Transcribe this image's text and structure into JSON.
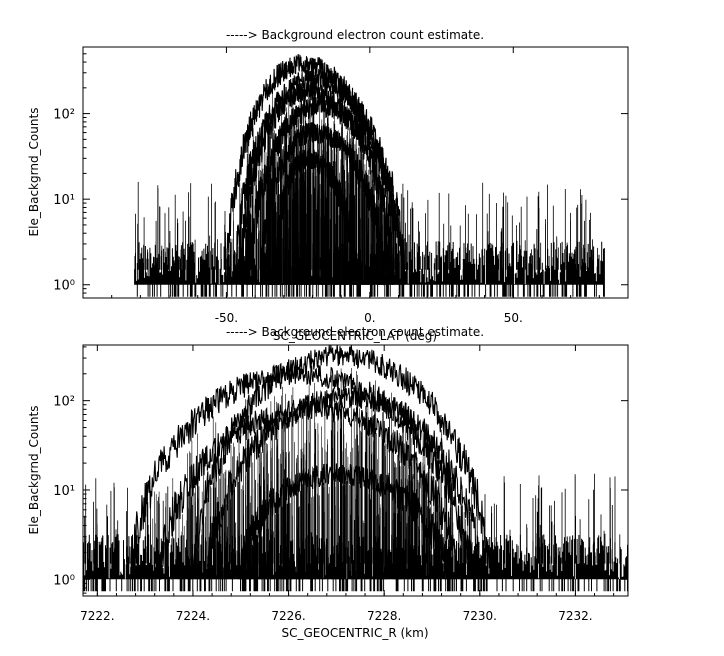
{
  "chart_data": [
    {
      "type": "line",
      "title": "-----> Background electron count estimate.",
      "xlabel": "SC_GEOCENTRIC_LAT (deg)",
      "ylabel": "Ele_Backgrnd_Counts",
      "xlim": [
        -100,
        90
      ],
      "ylim": [
        0.7,
        600
      ],
      "yscale": "log",
      "x_ticks": [
        -50,
        0,
        50
      ],
      "x_tick_labels": [
        "-50.",
        "0.",
        "50."
      ],
      "y_ticks": [
        1,
        10,
        100
      ],
      "y_tick_labels": [
        "10⁰",
        "10¹",
        "10²"
      ],
      "data_range_x": [
        -82,
        82
      ],
      "noise_floor_counts": [
        1,
        3
      ],
      "series": [
        {
          "peak_x": -24,
          "peak_y": 380,
          "x_span": [
            -50,
            10
          ]
        },
        {
          "peak_x": -20,
          "peak_y": 250,
          "x_span": [
            -47,
            12
          ]
        },
        {
          "peak_x": -22,
          "peak_y": 180,
          "x_span": [
            -45,
            8
          ]
        },
        {
          "peak_x": -18,
          "peak_y": 120,
          "x_span": [
            -42,
            12
          ]
        },
        {
          "peak_x": -20,
          "peak_y": 60,
          "x_span": [
            -38,
            5
          ]
        },
        {
          "peak_x": -22,
          "peak_y": 30,
          "x_span": [
            -33,
            -5
          ]
        }
      ]
    },
    {
      "type": "line",
      "title": "-----> Background electron count estimate.",
      "xlabel": "SC_GEOCENTRIC_R (km)",
      "ylabel": "Ele_Backgrnd_Counts",
      "xlim": [
        7221.7,
        7233.1
      ],
      "ylim": [
        0.65,
        420
      ],
      "yscale": "log",
      "x_ticks": [
        7222,
        7224,
        7226,
        7228,
        7230,
        7232
      ],
      "x_tick_labels": [
        "7222.",
        "7224.",
        "7226.",
        "7228.",
        "7230.",
        "7232."
      ],
      "y_ticks": [
        1,
        10,
        100
      ],
      "y_tick_labels": [
        "10⁰",
        "10¹",
        "10²"
      ],
      "data_range_x": [
        7221.7,
        7233.1
      ],
      "noise_floor_counts": [
        1,
        3
      ],
      "series": [
        {
          "peak_x": 7227.1,
          "peak_y": 320,
          "x_span": [
            7224.0,
            7230.2
          ]
        },
        {
          "peak_x": 7226.2,
          "peak_y": 200,
          "x_span": [
            7222.7,
            7229.8
          ]
        },
        {
          "peak_x": 7227.3,
          "peak_y": 110,
          "x_span": [
            7224.3,
            7230.0
          ]
        },
        {
          "peak_x": 7226.5,
          "peak_y": 80,
          "x_span": [
            7223.3,
            7229.5
          ]
        },
        {
          "peak_x": 7227.0,
          "peak_y": 15,
          "x_span": [
            7225.0,
            7229.3
          ]
        }
      ]
    }
  ]
}
